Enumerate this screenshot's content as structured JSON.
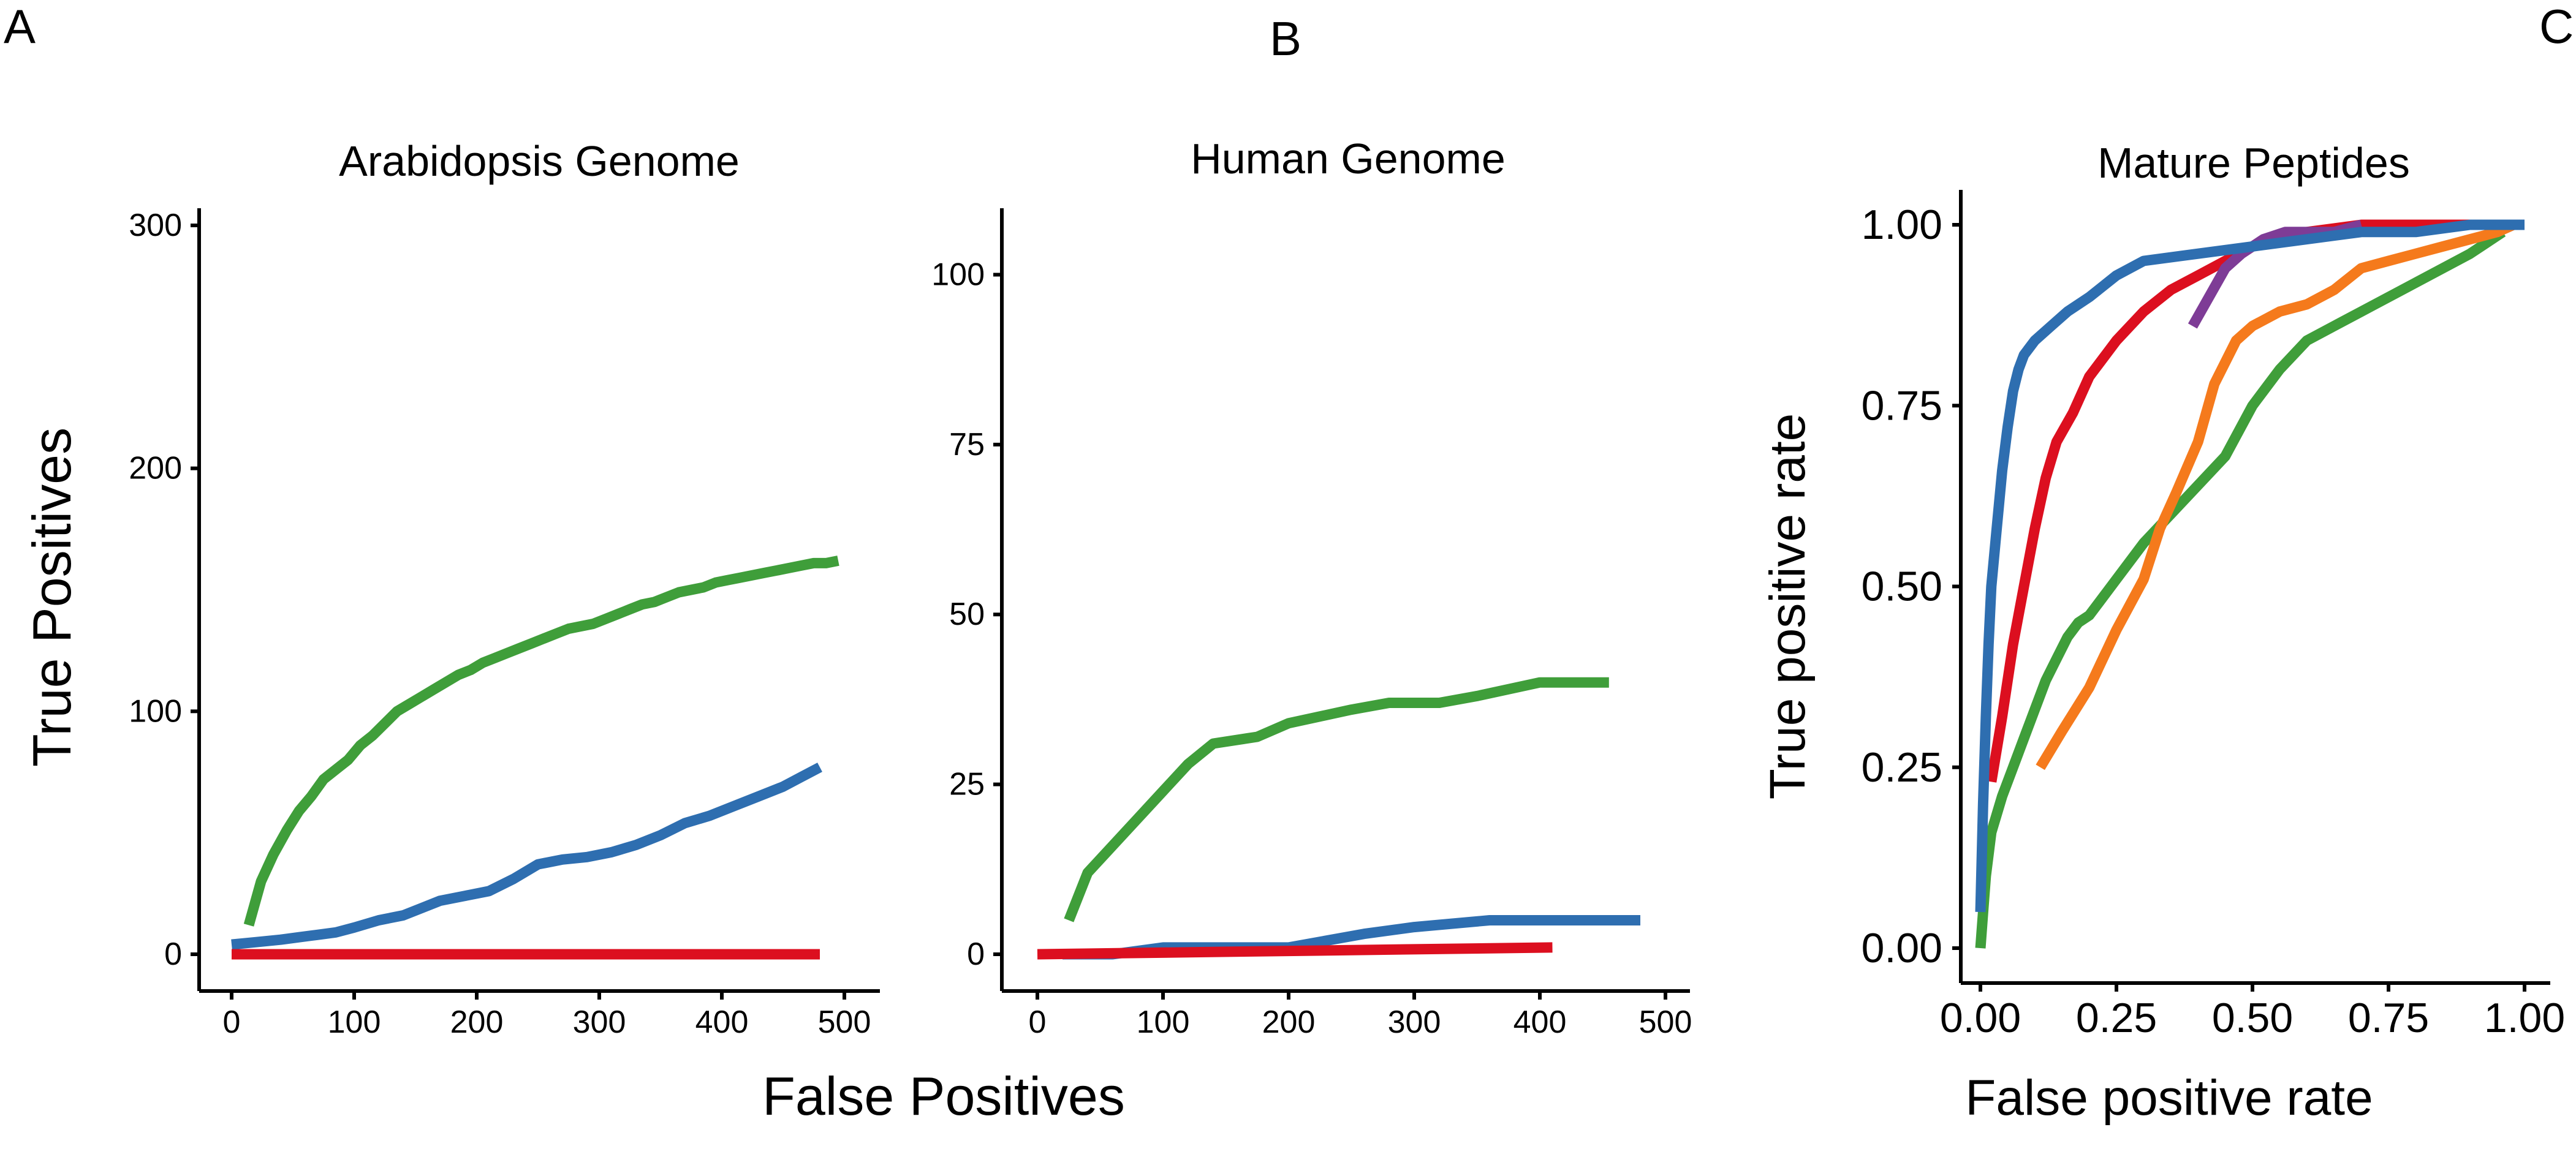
{
  "panel_labels": [
    "A",
    "B",
    "C"
  ],
  "shared_xlabel": "False Positives",
  "colors": {
    "green": "#3f9e3a",
    "blue": "#2e6eb0",
    "red": "#dc0f1f",
    "orange": "#f57a1c",
    "purple": "#7e3c96"
  },
  "chart_data": [
    {
      "type": "line",
      "title": "Arabidopsis Genome",
      "xlabel": "False Positives",
      "ylabel": "True Positives",
      "xlim": [
        0,
        500
      ],
      "ylim": [
        0,
        300
      ],
      "xticks": [
        0,
        100,
        200,
        300,
        400,
        500
      ],
      "yticks": [
        0,
        100,
        200,
        300
      ],
      "series": [
        {
          "color": "#3f9e3a",
          "x": [
            14,
            24,
            34,
            45,
            55,
            65,
            75,
            85,
            95,
            105,
            115,
            125,
            135,
            145,
            155,
            165,
            175,
            185,
            195,
            205,
            215,
            225,
            235,
            245,
            255,
            265,
            275,
            285,
            295,
            305,
            315,
            325,
            335,
            345,
            355,
            365,
            375,
            385,
            395,
            405,
            415,
            425,
            435,
            445,
            455,
            465,
            475,
            485,
            495
          ],
          "y": [
            12,
            30,
            41,
            51,
            59,
            65,
            72,
            76,
            80,
            86,
            90,
            95,
            100,
            103,
            106,
            109,
            112,
            115,
            117,
            120,
            122,
            124,
            126,
            128,
            130,
            132,
            134,
            135,
            136,
            138,
            140,
            142,
            144,
            145,
            147,
            149,
            150,
            151,
            153,
            154,
            155,
            156,
            157,
            158,
            159,
            160,
            161,
            161,
            162
          ]
        },
        {
          "color": "#2e6eb0",
          "x": [
            0,
            20,
            40,
            55,
            70,
            85,
            100,
            120,
            140,
            155,
            170,
            190,
            210,
            230,
            250,
            270,
            290,
            310,
            330,
            350,
            370,
            390,
            410,
            430,
            450,
            465,
            480
          ],
          "y": [
            4,
            5,
            6,
            7,
            8,
            9,
            11,
            14,
            16,
            19,
            22,
            24,
            26,
            31,
            37,
            39,
            40,
            42,
            45,
            49,
            54,
            57,
            61,
            65,
            69,
            73,
            77
          ]
        },
        {
          "color": "#dc0f1f",
          "x": [
            0,
            480
          ],
          "y": [
            0,
            0
          ]
        }
      ]
    },
    {
      "type": "line",
      "title": "Human Genome",
      "xlabel": "False Positives",
      "ylabel": "",
      "xlim": [
        0,
        500
      ],
      "ylim": [
        0,
        105
      ],
      "xticks": [
        0,
        100,
        200,
        300,
        400,
        500
      ],
      "yticks": [
        0,
        25,
        50,
        75,
        100
      ],
      "series": [
        {
          "color": "#3f9e3a",
          "x": [
            25,
            40,
            60,
            80,
            100,
            120,
            140,
            175,
            200,
            225,
            250,
            280,
            320,
            350,
            400,
            455
          ],
          "y": [
            5,
            12,
            16,
            20,
            24,
            28,
            31,
            32,
            34,
            35,
            36,
            37,
            37,
            38,
            40,
            40
          ]
        },
        {
          "color": "#2e6eb0",
          "x": [
            20,
            60,
            100,
            140,
            200,
            260,
            300,
            360,
            400,
            480
          ],
          "y": [
            0,
            0,
            1,
            1,
            1,
            3,
            4,
            5,
            5,
            5
          ]
        },
        {
          "color": "#dc0f1f",
          "x": [
            0,
            410
          ],
          "y": [
            0,
            1
          ]
        }
      ]
    },
    {
      "type": "line",
      "title": "Mature Peptides",
      "xlabel": "False positive rate",
      "ylabel": "True positive rate",
      "xlim": [
        0,
        1
      ],
      "ylim": [
        0,
        1
      ],
      "xticks": [
        "0.00",
        "0.25",
        "0.50",
        "0.75",
        "1.00"
      ],
      "yticks": [
        "0.00",
        "0.25",
        "0.50",
        "0.75",
        "1.00"
      ],
      "series": [
        {
          "color": "#3f9e3a",
          "x": [
            0.0,
            0.005,
            0.01,
            0.02,
            0.04,
            0.06,
            0.08,
            0.1,
            0.12,
            0.14,
            0.16,
            0.18,
            0.2,
            0.22,
            0.25,
            0.3,
            0.35,
            0.4,
            0.45,
            0.5,
            0.55,
            0.6,
            0.7,
            0.8,
            0.9,
            0.96
          ],
          "y": [
            0.0,
            0.05,
            0.1,
            0.16,
            0.21,
            0.25,
            0.29,
            0.33,
            0.37,
            0.4,
            0.43,
            0.45,
            0.46,
            0.48,
            0.51,
            0.56,
            0.6,
            0.64,
            0.68,
            0.75,
            0.8,
            0.84,
            0.88,
            0.92,
            0.96,
            0.99
          ]
        },
        {
          "color": "#f57a1c",
          "x": [
            0.11,
            0.15,
            0.2,
            0.25,
            0.3,
            0.33,
            0.36,
            0.4,
            0.43,
            0.47,
            0.5,
            0.55,
            0.6,
            0.65,
            0.7,
            0.75,
            0.8,
            0.85,
            0.9,
            0.95,
            0.98
          ],
          "y": [
            0.25,
            0.3,
            0.36,
            0.44,
            0.51,
            0.58,
            0.63,
            0.7,
            0.78,
            0.84,
            0.86,
            0.88,
            0.89,
            0.91,
            0.94,
            0.95,
            0.96,
            0.97,
            0.98,
            0.99,
            1.0
          ]
        },
        {
          "color": "#dc0f1f",
          "x": [
            0.02,
            0.04,
            0.06,
            0.08,
            0.1,
            0.12,
            0.14,
            0.17,
            0.2,
            0.25,
            0.3,
            0.35,
            0.4,
            0.45,
            0.5,
            0.6,
            0.7,
            0.8,
            0.9,
            1.0
          ],
          "y": [
            0.23,
            0.32,
            0.42,
            0.5,
            0.58,
            0.65,
            0.7,
            0.74,
            0.79,
            0.84,
            0.88,
            0.91,
            0.93,
            0.95,
            0.97,
            0.99,
            1.0,
            1.0,
            1.0,
            1.0
          ]
        },
        {
          "color": "#7e3c96",
          "x": [
            0.39,
            0.42,
            0.45,
            0.48,
            0.52,
            0.56,
            0.6,
            0.65,
            0.7
          ],
          "y": [
            0.86,
            0.9,
            0.94,
            0.96,
            0.98,
            0.99,
            0.99,
            0.99,
            1.0
          ]
        },
        {
          "color": "#2e6eb0",
          "x": [
            0.0,
            0.005,
            0.01,
            0.015,
            0.02,
            0.03,
            0.04,
            0.05,
            0.06,
            0.07,
            0.08,
            0.1,
            0.13,
            0.16,
            0.2,
            0.25,
            0.3,
            0.4,
            0.5,
            0.6,
            0.7,
            0.8,
            0.9,
            1.0
          ],
          "y": [
            0.05,
            0.2,
            0.32,
            0.42,
            0.5,
            0.58,
            0.66,
            0.72,
            0.77,
            0.8,
            0.82,
            0.84,
            0.86,
            0.88,
            0.9,
            0.93,
            0.95,
            0.96,
            0.97,
            0.98,
            0.99,
            0.99,
            1.0,
            1.0
          ]
        }
      ]
    }
  ]
}
